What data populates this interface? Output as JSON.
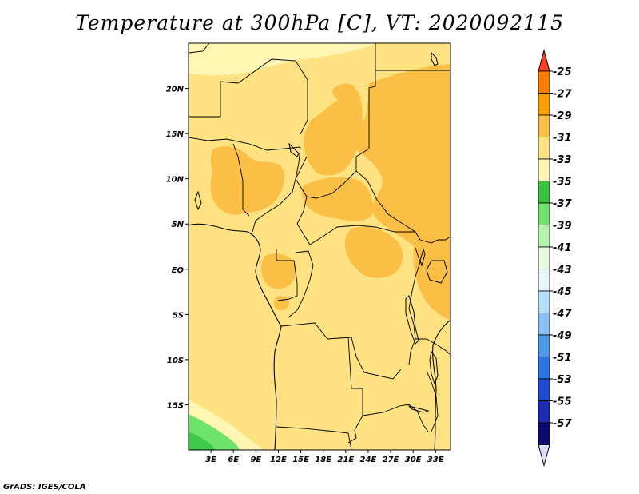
{
  "title": "Temperature at 300hPa [C], VT: 2020092115",
  "credit": "GrADS: IGES/COLA",
  "map": {
    "x_ticks": [
      "3E",
      "6E",
      "9E",
      "12E",
      "15E",
      "18E",
      "21E",
      "24E",
      "27E",
      "30E",
      "33E"
    ],
    "x_tick_values": [
      3,
      6,
      9,
      12,
      15,
      18,
      21,
      24,
      27,
      30,
      33
    ],
    "y_ticks": [
      "20N",
      "15N",
      "10N",
      "5N",
      "EQ",
      "5S",
      "10S",
      "15S"
    ],
    "y_tick_values": [
      20,
      15,
      10,
      5,
      0,
      -5,
      -10,
      -15
    ],
    "lon_range": [
      0,
      35
    ],
    "lat_range": [
      -20,
      25
    ],
    "field_colors": {
      "-35_-33": "#fff6b4",
      "-33_-31": "#ffe382",
      "-31_-29": "#fcbf46",
      "-37_-35": "#3dc94a",
      "-39_-37": "#6fe26a"
    }
  },
  "colorbar": {
    "labels": [
      "-25",
      "-27",
      "-29",
      "-31",
      "-33",
      "-35",
      "-37",
      "-39",
      "-41",
      "-43",
      "-45",
      "-47",
      "-49",
      "-51",
      "-53",
      "-55",
      "-57"
    ],
    "colors": [
      "#ff3e1f",
      "#ff7d00",
      "#ffa000",
      "#fcbf46",
      "#ffe382",
      "#fff6b4",
      "#39c43d",
      "#6fe26a",
      "#b4f5ad",
      "#e6fbe2",
      "#e7f6ff",
      "#b4e0fd",
      "#87c1f7",
      "#4c9be9",
      "#2e75e4",
      "#1e4bd1",
      "#1c2bb4",
      "#0c0a71",
      "#e0dcff"
    ]
  }
}
